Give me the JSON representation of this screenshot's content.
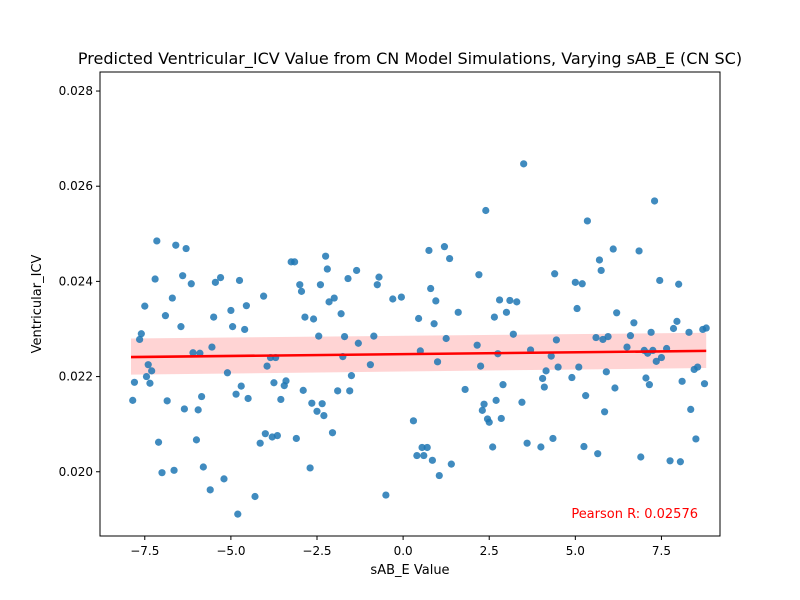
{
  "chart_data": {
    "type": "scatter",
    "title": "Predicted Ventricular_ICV Value from CN Model Simulations, Varying sAB_E (CN SC)",
    "xlabel": "sAB_E Value",
    "ylabel": "Ventricular_ICV",
    "xlim": [
      -8.8,
      9.2
    ],
    "ylim": [
      0.01865,
      0.0284
    ],
    "xticks": [
      -7.5,
      -5.0,
      -2.5,
      0.0,
      2.5,
      5.0,
      7.5
    ],
    "xtick_labels": [
      "−7.5",
      "−5.0",
      "−2.5",
      "0.0",
      "2.5",
      "5.0",
      "7.5"
    ],
    "yticks": [
      0.02,
      0.022,
      0.024,
      0.026,
      0.028
    ],
    "ytick_labels": [
      "0.020",
      "0.022",
      "0.024",
      "0.026",
      "0.028"
    ],
    "grid": false,
    "legend": "none",
    "point_color": "#1f77b4",
    "fit_color": "#ff0000",
    "band_color": "#ffcccc",
    "regression": {
      "x": [
        -7.9,
        8.8
      ],
      "y": [
        0.02241,
        0.02254
      ],
      "ci_lower": [
        0.02204,
        0.02218
      ],
      "ci_upper": [
        0.0228,
        0.02292
      ]
    },
    "annotation": {
      "text": "Pearson R: 0.02576",
      "color": "#ff0000"
    },
    "points": [
      [
        -7.85,
        0.0215
      ],
      [
        -7.8,
        0.02188
      ],
      [
        -7.65,
        0.02278
      ],
      [
        -7.6,
        0.0229
      ],
      [
        -7.5,
        0.02348
      ],
      [
        -7.45,
        0.022
      ],
      [
        -7.4,
        0.02225
      ],
      [
        -7.35,
        0.02186
      ],
      [
        -7.3,
        0.02212
      ],
      [
        -7.2,
        0.02405
      ],
      [
        -7.15,
        0.02485
      ],
      [
        -7.1,
        0.02062
      ],
      [
        -7.0,
        0.01998
      ],
      [
        -6.9,
        0.02328
      ],
      [
        -6.85,
        0.02149
      ],
      [
        -6.7,
        0.02365
      ],
      [
        -6.65,
        0.02003
      ],
      [
        -6.6,
        0.02476
      ],
      [
        -6.45,
        0.02305
      ],
      [
        -6.4,
        0.02412
      ],
      [
        -6.35,
        0.02132
      ],
      [
        -6.3,
        0.02469
      ],
      [
        -6.15,
        0.02395
      ],
      [
        -6.1,
        0.0225
      ],
      [
        -6.0,
        0.02067
      ],
      [
        -5.95,
        0.0213
      ],
      [
        -5.9,
        0.02249
      ],
      [
        -5.85,
        0.02158
      ],
      [
        -5.8,
        0.0201
      ],
      [
        -5.6,
        0.01962
      ],
      [
        -5.55,
        0.02262
      ],
      [
        -5.5,
        0.02325
      ],
      [
        -5.45,
        0.02398
      ],
      [
        -5.3,
        0.02408
      ],
      [
        -5.2,
        0.01985
      ],
      [
        -5.1,
        0.02208
      ],
      [
        -5.0,
        0.02339
      ],
      [
        -4.95,
        0.02305
      ],
      [
        -4.85,
        0.02163
      ],
      [
        -4.8,
        0.01911
      ],
      [
        -4.75,
        0.02402
      ],
      [
        -4.7,
        0.0218
      ],
      [
        -4.6,
        0.02299
      ],
      [
        -4.55,
        0.02349
      ],
      [
        -4.5,
        0.02154
      ],
      [
        -4.3,
        0.01948
      ],
      [
        -4.15,
        0.0206
      ],
      [
        -4.05,
        0.02369
      ],
      [
        -4.0,
        0.0208
      ],
      [
        -3.95,
        0.02222
      ],
      [
        -3.85,
        0.0224
      ],
      [
        -3.8,
        0.02073
      ],
      [
        -3.75,
        0.02187
      ],
      [
        -3.7,
        0.0224
      ],
      [
        -3.65,
        0.02076
      ],
      [
        -3.55,
        0.02152
      ],
      [
        -3.45,
        0.02181
      ],
      [
        -3.4,
        0.02191
      ],
      [
        -3.25,
        0.02441
      ],
      [
        -3.15,
        0.02441
      ],
      [
        -3.1,
        0.0207
      ],
      [
        -3.0,
        0.02393
      ],
      [
        -2.95,
        0.02379
      ],
      [
        -2.9,
        0.02171
      ],
      [
        -2.85,
        0.02325
      ],
      [
        -2.7,
        0.02008
      ],
      [
        -2.65,
        0.02144
      ],
      [
        -2.6,
        0.02321
      ],
      [
        -2.5,
        0.02127
      ],
      [
        -2.45,
        0.02285
      ],
      [
        -2.4,
        0.02393
      ],
      [
        -2.35,
        0.02143
      ],
      [
        -2.3,
        0.02118
      ],
      [
        -2.25,
        0.02453
      ],
      [
        -2.2,
        0.02426
      ],
      [
        -2.15,
        0.02357
      ],
      [
        -2.05,
        0.02082
      ],
      [
        -2.0,
        0.02365
      ],
      [
        -1.9,
        0.0217
      ],
      [
        -1.8,
        0.02332
      ],
      [
        -1.75,
        0.02242
      ],
      [
        -1.7,
        0.02284
      ],
      [
        -1.6,
        0.02406
      ],
      [
        -1.55,
        0.0217
      ],
      [
        -1.5,
        0.02202
      ],
      [
        -1.35,
        0.02423
      ],
      [
        -1.3,
        0.0227
      ],
      [
        -0.95,
        0.02225
      ],
      [
        -0.85,
        0.02285
      ],
      [
        -0.75,
        0.02393
      ],
      [
        -0.7,
        0.02409
      ],
      [
        -0.5,
        0.01951
      ],
      [
        -0.3,
        0.02363
      ],
      [
        -0.05,
        0.02367
      ],
      [
        0.3,
        0.02107
      ],
      [
        0.4,
        0.02034
      ],
      [
        0.45,
        0.02322
      ],
      [
        0.5,
        0.02254
      ],
      [
        0.55,
        0.02051
      ],
      [
        0.6,
        0.02034
      ],
      [
        0.7,
        0.02051
      ],
      [
        0.75,
        0.02465
      ],
      [
        0.8,
        0.02385
      ],
      [
        0.85,
        0.02024
      ],
      [
        0.9,
        0.02311
      ],
      [
        0.95,
        0.02359
      ],
      [
        1.0,
        0.02231
      ],
      [
        1.05,
        0.01992
      ],
      [
        1.2,
        0.02473
      ],
      [
        1.25,
        0.0228
      ],
      [
        1.35,
        0.02448
      ],
      [
        1.4,
        0.02016
      ],
      [
        1.6,
        0.02335
      ],
      [
        1.8,
        0.02173
      ],
      [
        2.15,
        0.02266
      ],
      [
        2.2,
        0.02414
      ],
      [
        2.25,
        0.02222
      ],
      [
        2.3,
        0.02129
      ],
      [
        2.35,
        0.02142
      ],
      [
        2.4,
        0.02549
      ],
      [
        2.45,
        0.02111
      ],
      [
        2.5,
        0.02104
      ],
      [
        2.6,
        0.02052
      ],
      [
        2.65,
        0.02325
      ],
      [
        2.7,
        0.0215
      ],
      [
        2.75,
        0.02248
      ],
      [
        2.8,
        0.02361
      ],
      [
        2.85,
        0.02112
      ],
      [
        2.9,
        0.02183
      ],
      [
        3.0,
        0.02335
      ],
      [
        3.1,
        0.0236
      ],
      [
        3.2,
        0.02289
      ],
      [
        3.3,
        0.02357
      ],
      [
        3.45,
        0.02146
      ],
      [
        3.5,
        0.02647
      ],
      [
        3.6,
        0.0206
      ],
      [
        3.7,
        0.02256
      ],
      [
        4.0,
        0.02052
      ],
      [
        4.05,
        0.02196
      ],
      [
        4.1,
        0.02178
      ],
      [
        4.15,
        0.02212
      ],
      [
        4.3,
        0.02243
      ],
      [
        4.35,
        0.0207
      ],
      [
        4.4,
        0.02416
      ],
      [
        4.45,
        0.02277
      ],
      [
        4.5,
        0.0222
      ],
      [
        4.9,
        0.02198
      ],
      [
        5.0,
        0.02398
      ],
      [
        5.05,
        0.02343
      ],
      [
        5.1,
        0.0222
      ],
      [
        5.2,
        0.02395
      ],
      [
        5.25,
        0.02053
      ],
      [
        5.3,
        0.0216
      ],
      [
        5.35,
        0.02527
      ],
      [
        5.6,
        0.02282
      ],
      [
        5.65,
        0.02038
      ],
      [
        5.7,
        0.02445
      ],
      [
        5.75,
        0.02423
      ],
      [
        5.8,
        0.02278
      ],
      [
        5.85,
        0.02126
      ],
      [
        5.9,
        0.0221
      ],
      [
        5.95,
        0.02284
      ],
      [
        6.1,
        0.02468
      ],
      [
        6.15,
        0.02176
      ],
      [
        6.2,
        0.02334
      ],
      [
        6.5,
        0.02262
      ],
      [
        6.6,
        0.02286
      ],
      [
        6.7,
        0.02313
      ],
      [
        6.85,
        0.02464
      ],
      [
        6.9,
        0.02031
      ],
      [
        7.0,
        0.02255
      ],
      [
        7.05,
        0.02197
      ],
      [
        7.1,
        0.02249
      ],
      [
        7.15,
        0.02183
      ],
      [
        7.2,
        0.02293
      ],
      [
        7.25,
        0.02255
      ],
      [
        7.3,
        0.02569
      ],
      [
        7.35,
        0.02232
      ],
      [
        7.45,
        0.02402
      ],
      [
        7.5,
        0.0224
      ],
      [
        7.65,
        0.02259
      ],
      [
        7.75,
        0.02023
      ],
      [
        7.85,
        0.02301
      ],
      [
        7.95,
        0.02316
      ],
      [
        8.0,
        0.02394
      ],
      [
        8.05,
        0.02021
      ],
      [
        8.1,
        0.0219
      ],
      [
        8.3,
        0.02293
      ],
      [
        8.35,
        0.02131
      ],
      [
        8.45,
        0.02215
      ],
      [
        8.5,
        0.02069
      ],
      [
        8.55,
        0.0222
      ],
      [
        8.7,
        0.02299
      ],
      [
        8.75,
        0.02185
      ],
      [
        8.8,
        0.02302
      ]
    ]
  }
}
